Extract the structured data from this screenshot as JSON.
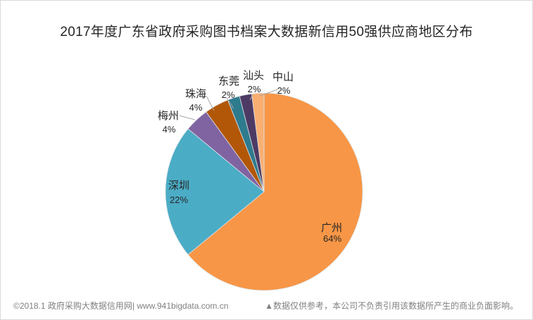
{
  "title": "2017年度广东省政府采购图书档案大数据新信用50强供应商地区分布",
  "footer": {
    "left": "©2018.1 政府采购大数据信用网| www.941bigdata.com.cn",
    "right": "▲数据仅供参考，本公司不负责引用该数据所产生的商业负面影响。"
  },
  "chart_data": {
    "type": "pie",
    "title": "2017年度广东省政府采购图书档案大数据新信用50强供应商地区分布",
    "unit": "%",
    "direction": "clockwise",
    "start_angle_deg": 0,
    "legend": "none",
    "slices": [
      {
        "name": "广州",
        "value": 64,
        "pct_label": "64%",
        "color": "#F79646",
        "label_position": "inside"
      },
      {
        "name": "深圳",
        "value": 22,
        "pct_label": "22%",
        "color": "#4BACC6",
        "label_position": "inside"
      },
      {
        "name": "梅州",
        "value": 4,
        "pct_label": "4%",
        "color": "#8064A2",
        "label_position": "outside"
      },
      {
        "name": "珠海",
        "value": 4,
        "pct_label": "4%",
        "color": "#B25708",
        "label_position": "outside"
      },
      {
        "name": "东莞",
        "value": 2,
        "pct_label": "2%",
        "color": "#2E7B8E",
        "label_position": "outside"
      },
      {
        "name": "汕头",
        "value": 2,
        "pct_label": "2%",
        "color": "#4D3A64",
        "label_position": "outside"
      },
      {
        "name": "中山",
        "value": 2,
        "pct_label": "2%",
        "color": "#FAAF72",
        "label_position": "outside"
      }
    ],
    "label_text_color": "#262626",
    "leader_line_color": "#A6A6A6"
  }
}
